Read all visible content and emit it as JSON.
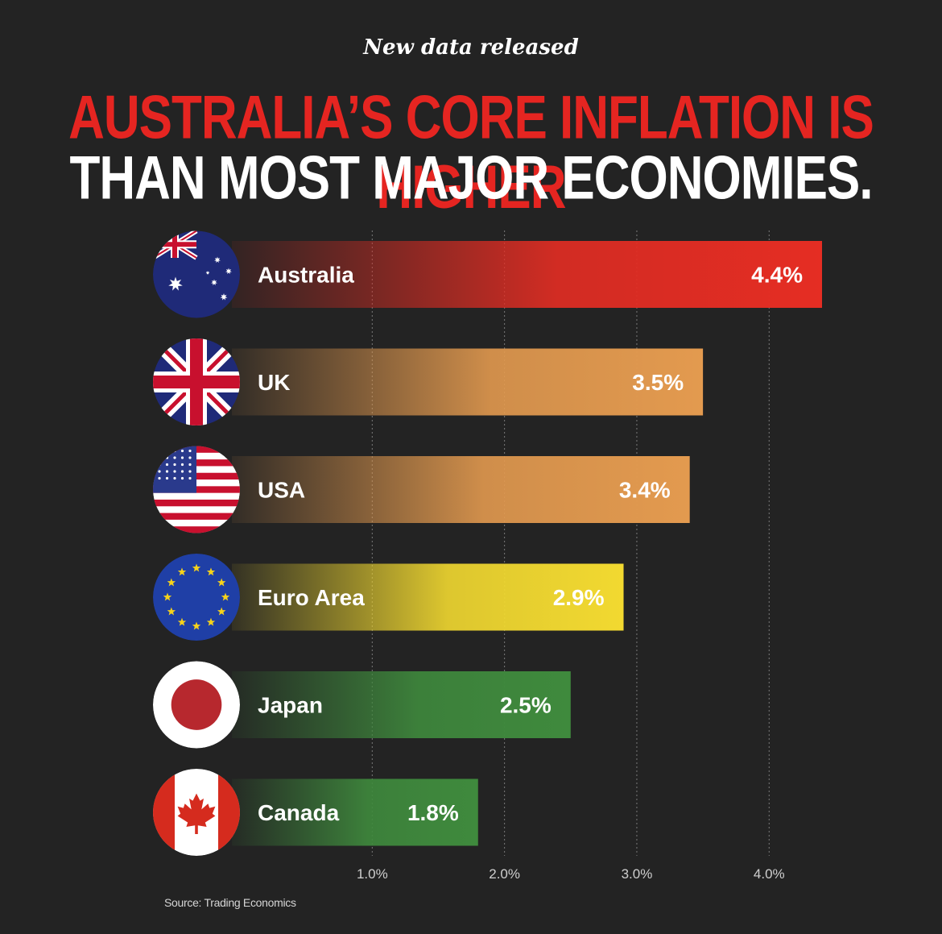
{
  "kicker": "New data released",
  "headline": {
    "line1": "AUSTRALIA’S CORE INFLATION IS HIGHER",
    "line2": "THAN MOST MAJOR ECONOMIES."
  },
  "source": "Source: Trading Economics",
  "chart_data": {
    "type": "bar",
    "orientation": "horizontal",
    "title": "",
    "xlabel": "",
    "ylabel": "",
    "categories": [
      "Australia",
      "UK",
      "USA",
      "Euro Area",
      "Japan",
      "Canada"
    ],
    "values": [
      4.4,
      3.5,
      3.4,
      2.9,
      2.5,
      1.8
    ],
    "value_labels": [
      "4.4%",
      "3.5%",
      "3.4%",
      "2.9%",
      "2.5%",
      "1.8%"
    ],
    "flag_icons": [
      "australia-flag-icon",
      "uk-flag-icon",
      "usa-flag-icon",
      "eu-flag-icon",
      "japan-flag-icon",
      "canada-flag-icon"
    ],
    "bar_colors": [
      "#e52d23",
      "#e39a4f",
      "#e39a4f",
      "#f2d930",
      "#3f8a3d",
      "#3f8a3d"
    ],
    "xlim": [
      0,
      4.4
    ],
    "xticks": [
      1,
      2,
      3,
      4
    ],
    "xtick_labels": [
      "1.0%",
      "2.0%",
      "3.0%",
      "4.0%"
    ],
    "grid": "vertical-dotted"
  }
}
